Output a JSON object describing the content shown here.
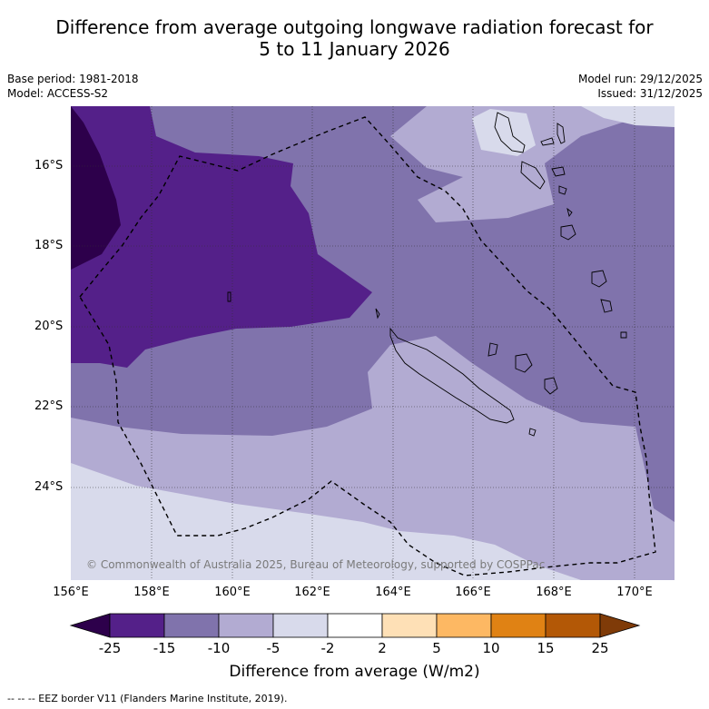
{
  "title": {
    "line1": "Difference from average outgoing longwave radiation forecast for",
    "line2": "5 to 11 January 2026"
  },
  "meta_left": {
    "base_period": "Base period: 1981-2018",
    "model": "Model: ACCESS-S2"
  },
  "meta_right": {
    "model_run": "Model run: 29/12/2025",
    "issued": "Issued: 31/12/2025"
  },
  "map": {
    "lon_labels": [
      "156°E",
      "158°E",
      "160°E",
      "162°E",
      "164°E",
      "166°E",
      "168°E",
      "170°E"
    ],
    "lat_labels": [
      "16°S",
      "18°S",
      "20°S",
      "22°S",
      "24°S"
    ],
    "copyright": "© Commonwealth of Australia 2025, Bureau of Meteorology, supported by COSPPac"
  },
  "colorbar": {
    "ticks": [
      "-25",
      "-15",
      "-10",
      "-5",
      "-2",
      "2",
      "5",
      "10",
      "15",
      "25"
    ],
    "colors": [
      "#2d004b",
      "#542089",
      "#8073ac",
      "#b2abd2",
      "#d8daeb",
      "#ffffff",
      "#fee0b6",
      "#fdb863",
      "#e08214",
      "#b35806",
      "#7f3b08"
    ],
    "label": "Difference from average (W/m2)"
  },
  "footnote": "--  --  -- EEZ border V11 (Flanders Marine Institute, 2019)."
}
